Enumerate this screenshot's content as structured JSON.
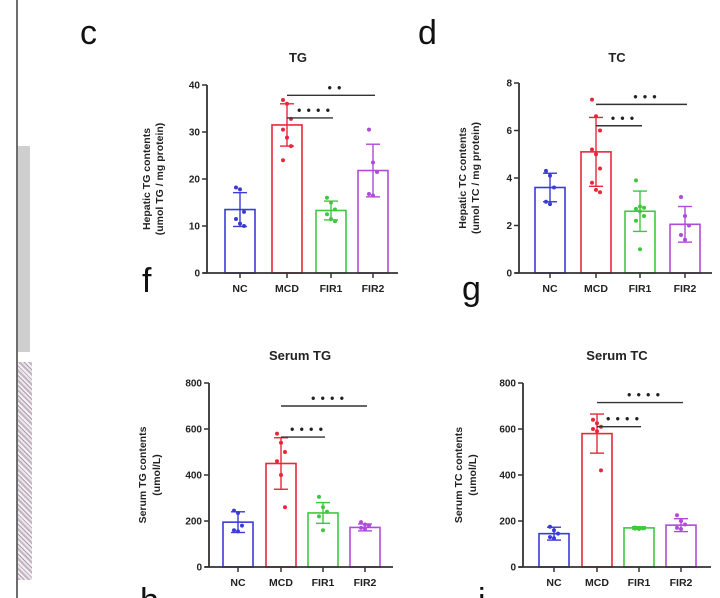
{
  "colors": {
    "NC": "#3b3bd6",
    "MCD": "#e8283a",
    "FIR1": "#3fc83f",
    "FIR2": "#b04ad8",
    "axis": "#333333"
  },
  "chart_data": [
    {
      "panel": "c",
      "type": "bar",
      "title": "TG",
      "ylabel_line1": "Hepatic TG contents",
      "ylabel_line2": "(umol TG / mg protein)",
      "xlabel": "",
      "categories": [
        "NC",
        "MCD",
        "FIR1",
        "FIR2"
      ],
      "values": [
        13.5,
        31.5,
        13.3,
        21.8
      ],
      "error_sd": [
        3.6,
        4.5,
        2.0,
        5.6
      ],
      "points": [
        [
          18.2,
          17.8,
          13.0,
          11.5,
          10.5,
          10.0
        ],
        [
          36.8,
          36.0,
          32.8,
          30.5,
          28.8,
          27.0,
          24.0
        ],
        [
          16.0,
          15.0,
          13.5,
          12.5,
          11.5,
          11.0
        ],
        [
          30.5,
          23.5,
          21.5,
          16.8,
          16.5
        ]
      ],
      "ylim": [
        0,
        40
      ],
      "yticks": [
        0,
        10,
        20,
        30,
        40
      ],
      "significance": [
        {
          "from": "MCD",
          "to": "FIR1",
          "label": "****",
          "y": 33
        },
        {
          "from": "MCD",
          "to": "FIR2",
          "label": "**",
          "y": 37.8
        }
      ]
    },
    {
      "panel": "d",
      "type": "bar",
      "title": "TC",
      "ylabel_line1": "Hepatic TC contents",
      "ylabel_line2": "(umol TC / mg protein)",
      "xlabel": "",
      "categories": [
        "NC",
        "MCD",
        "FIR1",
        "FIR2"
      ],
      "values": [
        3.6,
        5.1,
        2.6,
        2.05
      ],
      "error_sd": [
        0.6,
        1.45,
        0.85,
        0.75
      ],
      "points": [
        [
          4.3,
          4.1,
          3.6,
          3.0,
          2.9
        ],
        [
          7.3,
          6.6,
          6.0,
          5.2,
          5.0,
          4.4,
          3.8,
          3.5,
          3.4
        ],
        [
          3.9,
          2.8,
          2.75,
          2.7,
          2.6,
          2.4,
          2.2,
          1.0
        ],
        [
          3.2,
          2.4,
          2.0,
          1.6,
          1.4
        ]
      ],
      "ylim": [
        0,
        8
      ],
      "yticks": [
        0,
        2,
        4,
        6,
        8
      ],
      "significance": [
        {
          "from": "MCD",
          "to": "FIR1",
          "label": "***",
          "y": 6.2
        },
        {
          "from": "MCD",
          "to": "FIR2",
          "label": "***",
          "y": 7.1
        }
      ]
    },
    {
      "panel": "f",
      "type": "bar",
      "title": "Serum TG",
      "ylabel_line1": "Serum TG contents",
      "ylabel_line2": "(umol/L)",
      "xlabel": "",
      "categories": [
        "NC",
        "MCD",
        "FIR1",
        "FIR2"
      ],
      "values": [
        195,
        450,
        235,
        172
      ],
      "error_sd": [
        45,
        112,
        45,
        15
      ],
      "points": [
        [
          245,
          235,
          180,
          160,
          155
        ],
        [
          580,
          540,
          500,
          460,
          400,
          260
        ],
        [
          305,
          260,
          240,
          220,
          160
        ],
        [
          195,
          185,
          180,
          170,
          165
        ]
      ],
      "ylim": [
        0,
        800
      ],
      "yticks": [
        0,
        200,
        400,
        600,
        800
      ],
      "significance": [
        {
          "from": "MCD",
          "to": "FIR1",
          "label": "****",
          "y": 565
        },
        {
          "from": "MCD",
          "to": "FIR2",
          "label": "****",
          "y": 700
        }
      ]
    },
    {
      "panel": "g",
      "type": "bar",
      "title": "Serum TC",
      "ylabel_line1": "Serum TC contents",
      "ylabel_line2": "(umol/L)",
      "xlabel": "",
      "categories": [
        "NC",
        "MCD",
        "FIR1",
        "FIR2"
      ],
      "values": [
        145,
        580,
        170,
        182
      ],
      "error_sd": [
        28,
        85,
        5,
        28
      ],
      "points": [
        [
          175,
          160,
          145,
          130,
          125
        ],
        [
          640,
          625,
          610,
          600,
          590,
          420
        ],
        [
          172,
          170,
          168,
          167,
          165
        ],
        [
          225,
          200,
          185,
          170,
          165
        ]
      ],
      "ylim": [
        0,
        800
      ],
      "yticks": [
        0,
        200,
        400,
        600,
        800
      ],
      "significance": [
        {
          "from": "MCD",
          "to": "FIR1",
          "label": "****",
          "y": 610
        },
        {
          "from": "MCD",
          "to": "FIR2",
          "label": "****",
          "y": 715
        }
      ]
    }
  ],
  "partial_panel_letters": [
    "h",
    "i"
  ]
}
